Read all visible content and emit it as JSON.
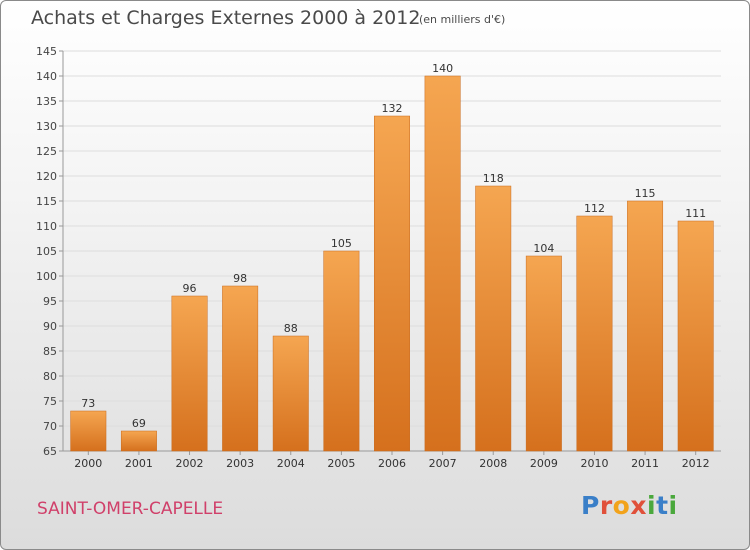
{
  "header": {
    "title": "Achats et Charges Externes 2000 à 2012",
    "subtitle": "(en milliers d'€)"
  },
  "footer": {
    "commune": "SAINT-OMER-CAPELLE",
    "logo_text": "Proxiti"
  },
  "colors": {
    "bar_top": "#f5a651",
    "bar_bottom": "#d5701d",
    "commune_text": "#d0406a",
    "logo_letters": [
      "#3a7fc8",
      "#e0503a",
      "#f2a31b",
      "#e0503a",
      "#4aa83c",
      "#3a7fc8",
      "#4aa83c"
    ]
  },
  "chart_data": {
    "type": "bar",
    "title": "Achats et Charges Externes 2000 à 2012",
    "subtitle": "(en milliers d'€)",
    "categories": [
      "2000",
      "2001",
      "2002",
      "2003",
      "2004",
      "2005",
      "2006",
      "2007",
      "2008",
      "2009",
      "2010",
      "2011",
      "2012"
    ],
    "values": [
      73,
      69,
      96,
      98,
      88,
      105,
      132,
      140,
      118,
      104,
      112,
      115,
      111
    ],
    "ylim": [
      65,
      145
    ],
    "yticks": [
      65,
      70,
      75,
      80,
      85,
      90,
      95,
      100,
      105,
      110,
      115,
      120,
      125,
      130,
      135,
      140,
      145
    ],
    "grid": true,
    "data_labels": true
  }
}
